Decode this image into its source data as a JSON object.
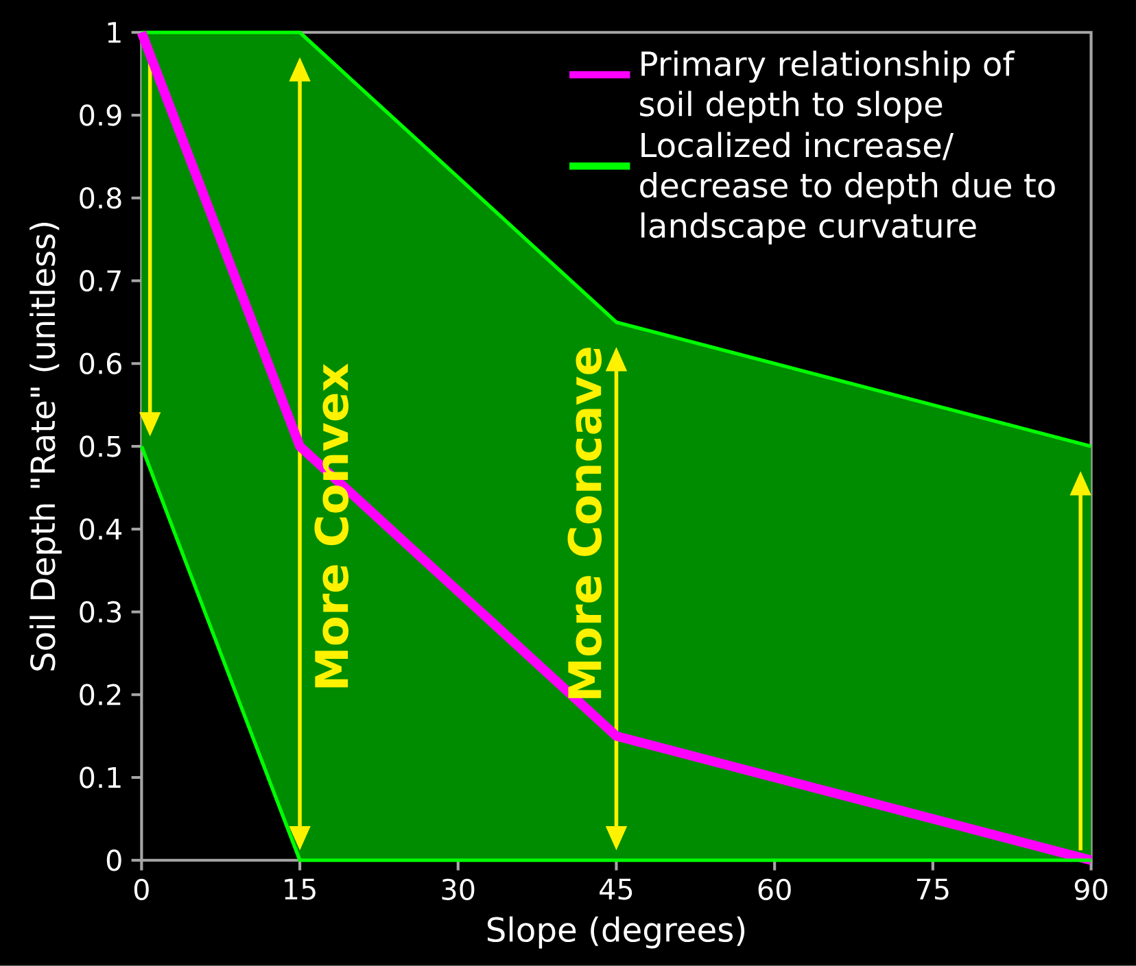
{
  "chart_data": {
    "type": "line",
    "xlabel": "Slope (degrees)",
    "ylabel": "Soil Depth \"Rate\" (unitless)",
    "xlim": [
      0,
      90
    ],
    "ylim": [
      0,
      1
    ],
    "xticks": [
      0,
      15,
      30,
      45,
      60,
      75,
      90
    ],
    "yticks": [
      0,
      0.1,
      0.2,
      0.3,
      0.4,
      0.5,
      0.6,
      0.7,
      0.8,
      0.9,
      1
    ],
    "legend": "top right",
    "grid": false,
    "series": [
      {
        "name": "Primary relationship of soil depth to slope",
        "color": "#ff00ff",
        "x": [
          0,
          15,
          45,
          90
        ],
        "values": [
          1,
          0.5,
          0.15,
          0
        ]
      },
      {
        "name": "Localized increase/ decrease to depth due to landscape curvature",
        "color": "#00ff00",
        "x": [
          0,
          15,
          45,
          90
        ],
        "values": [
          1,
          1,
          0.65,
          0.5
        ],
        "lower": [
          0.5,
          0,
          0,
          0
        ],
        "upper": [
          1,
          1,
          0.65,
          0.5
        ]
      },
      {
        "color": "#00ff00",
        "x": [
          0,
          15,
          45,
          90
        ],
        "values": [
          0.5,
          0,
          0,
          0
        ]
      }
    ],
    "annotations": [
      "More Convex",
      "More Concave"
    ]
  }
}
